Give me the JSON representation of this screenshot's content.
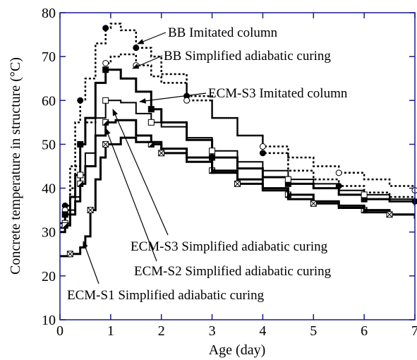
{
  "chart_data": {
    "type": "line",
    "xlabel": "Age (day)",
    "ylabel": "Concrete temperature in structure (°C)",
    "xlim": [
      0,
      7
    ],
    "xticks": [
      0,
      1,
      2,
      3,
      4,
      5,
      6,
      7
    ],
    "ylim": [
      10,
      80
    ],
    "yticks": [
      10,
      20,
      30,
      40,
      50,
      60,
      70,
      80
    ],
    "annotations": [
      "BB Imitated column",
      "BB Simplified adiabatic curing",
      "ECM-S3 Imitated column",
      "ECM-S3 Simplified adiabatic curing",
      "ECM-S2 Simplified adiabatic curing",
      "ECM-S1 Simplified adiabatic curing"
    ],
    "series": [
      {
        "name": "BB Imitated column",
        "color": "#000000",
        "x": [
          0,
          0.1,
          0.2,
          0.3,
          0.4,
          0.5,
          0.7,
          0.9,
          1.0,
          1.2,
          1.5,
          1.8,
          2.0,
          2.5,
          3.0,
          3.5,
          4.0,
          4.5,
          5.0,
          5.5,
          6.0,
          6.5,
          7.0
        ],
        "values": [
          32,
          36,
          45,
          55,
          60,
          65,
          73,
          76.5,
          77.5,
          76,
          72,
          70,
          66,
          61,
          56,
          52,
          48,
          44,
          42,
          40.5,
          39,
          38,
          37
        ]
      },
      {
        "name": "BB Simplified adiabatic curing",
        "color": "#000000",
        "x": [
          0,
          0.1,
          0.2,
          0.3,
          0.4,
          0.5,
          0.7,
          0.9,
          1.0,
          1.2,
          1.5,
          1.8,
          2.0,
          2.5,
          3.0,
          3.5,
          4.0,
          4.5,
          5.0,
          5.5,
          6.0,
          6.5,
          7.0
        ],
        "values": [
          32,
          35,
          40,
          45,
          50,
          55,
          64,
          68.5,
          70,
          70.5,
          68,
          65.5,
          64,
          60,
          56,
          52,
          49.5,
          47,
          45,
          43.5,
          42,
          40.5,
          39.5
        ]
      },
      {
        "name": "ECM-S3 Imitated column",
        "color": "#000000",
        "x": [
          0,
          0.1,
          0.2,
          0.3,
          0.4,
          0.5,
          0.7,
          0.9,
          1.2,
          1.5,
          1.8,
          2.0,
          2.5,
          3.0,
          3.5,
          4.0,
          4.5,
          5.0,
          5.5,
          6.0,
          6.5,
          7.0
        ],
        "values": [
          31,
          34,
          38,
          43,
          50,
          56,
          64,
          67,
          65,
          62,
          58,
          55,
          51,
          47,
          44.5,
          42.5,
          41,
          40,
          38.5,
          37.5,
          37,
          36
        ]
      },
      {
        "name": "ECM-S3 Simplified adiabatic curing",
        "color": "#000000",
        "x": [
          0,
          0.1,
          0.2,
          0.3,
          0.4,
          0.5,
          0.7,
          0.9,
          1.2,
          1.5,
          1.8,
          2.0,
          2.5,
          3.0,
          3.5,
          4.0,
          4.5,
          5.0,
          5.5,
          6.0,
          6.5,
          7.0
        ],
        "values": [
          30,
          32,
          35,
          38,
          43,
          48,
          56,
          60,
          59.5,
          57,
          55,
          54,
          51.5,
          48.5,
          46,
          44,
          42,
          41,
          39.5,
          38.5,
          37.5,
          36.5
        ]
      },
      {
        "name": "ECM-S2 Simplified adiabatic curing",
        "color": "#000000",
        "x": [
          0,
          0.1,
          0.2,
          0.3,
          0.4,
          0.5,
          0.7,
          0.9,
          1.1,
          1.5,
          1.8,
          2.0,
          2.5,
          3.0,
          3.5,
          4.0,
          4.5,
          5.0,
          5.5,
          6.0,
          6.5,
          7.0
        ],
        "values": [
          30,
          31.5,
          34,
          37,
          41,
          45,
          52,
          55,
          55.5,
          52,
          50,
          49,
          47,
          44,
          42,
          40,
          38.5,
          37,
          36,
          35,
          34,
          33
        ]
      },
      {
        "name": "ECM-S1 Simplified adiabatic curing",
        "color": "#000000",
        "x": [
          0,
          0.2,
          0.4,
          0.5,
          0.6,
          0.7,
          0.8,
          0.9,
          1.2,
          1.5,
          2.0,
          2.5,
          3.0,
          3.5,
          4.0,
          4.5,
          5.0,
          5.5,
          6.0,
          6.5,
          7.0
        ],
        "values": [
          24.5,
          25,
          26.5,
          29,
          35,
          42,
          47,
          50,
          51.5,
          50.5,
          48,
          46,
          43.5,
          41,
          39.5,
          37.5,
          36.5,
          35.5,
          34.5,
          34,
          33.5
        ]
      }
    ]
  }
}
